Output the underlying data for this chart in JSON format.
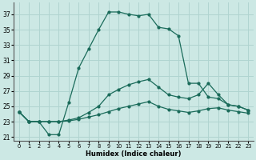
{
  "title": "",
  "xlabel": "Humidex (Indice chaleur)",
  "bg_color": "#cce8e4",
  "grid_color": "#b0d4d0",
  "line_color": "#1a6b5a",
  "xlim": [
    -0.5,
    23.5
  ],
  "ylim": [
    20.5,
    38.5
  ],
  "xticks": [
    0,
    1,
    2,
    3,
    4,
    5,
    6,
    7,
    8,
    9,
    10,
    11,
    12,
    13,
    14,
    15,
    16,
    17,
    18,
    19,
    20,
    21,
    22,
    23
  ],
  "yticks": [
    21,
    23,
    25,
    27,
    29,
    31,
    33,
    35,
    37
  ],
  "series1_x": [
    0,
    1,
    2,
    3,
    4,
    5,
    6,
    7,
    8,
    9,
    10,
    11,
    12,
    13,
    14,
    15,
    16,
    17,
    18,
    19,
    20,
    21,
    22,
    23
  ],
  "series1_y": [
    24.3,
    23.0,
    23.0,
    21.3,
    21.3,
    25.5,
    30.0,
    32.5,
    35.0,
    37.3,
    37.3,
    37.0,
    36.8,
    37.0,
    35.3,
    35.1,
    34.2,
    28.0,
    28.0,
    26.2,
    26.0,
    25.2,
    25.0,
    24.5
  ],
  "series2_x": [
    0,
    1,
    2,
    3,
    4,
    5,
    6,
    7,
    8,
    9,
    10,
    11,
    12,
    13,
    14,
    15,
    16,
    17,
    18,
    19,
    20,
    21,
    22,
    23
  ],
  "series2_y": [
    24.3,
    23.0,
    23.0,
    23.0,
    23.0,
    23.2,
    23.5,
    24.2,
    25.0,
    26.5,
    27.2,
    27.8,
    28.2,
    28.5,
    27.5,
    26.5,
    26.2,
    26.0,
    26.5,
    28.0,
    26.5,
    25.2,
    25.0,
    24.5
  ],
  "series3_x": [
    0,
    1,
    2,
    3,
    4,
    5,
    6,
    7,
    8,
    9,
    10,
    11,
    12,
    13,
    14,
    15,
    16,
    17,
    18,
    19,
    20,
    21,
    22,
    23
  ],
  "series3_y": [
    24.3,
    23.0,
    23.0,
    23.0,
    23.0,
    23.1,
    23.3,
    23.6,
    23.9,
    24.3,
    24.7,
    25.0,
    25.3,
    25.6,
    25.0,
    24.6,
    24.4,
    24.2,
    24.4,
    24.7,
    24.8,
    24.5,
    24.3,
    24.1
  ]
}
